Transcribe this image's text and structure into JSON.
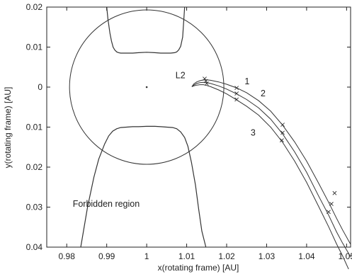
{
  "chart_data": {
    "type": "line",
    "title": "",
    "xlabel": "x(rotating frame) [AU]",
    "ylabel": "y(rotating frame) [AU]",
    "xlim": [
      0.975,
      1.051
    ],
    "ylim": [
      -0.04,
      0.02
    ],
    "y_inverted_display": false,
    "grid": false,
    "x_ticks": [
      0.98,
      0.99,
      1,
      1.01,
      1.02,
      1.03,
      1.04,
      1.05
    ],
    "x_tick_labels": [
      "0.98",
      "0.99",
      "1",
      "1.01",
      "1.02",
      "1.03",
      "1.04",
      "1.05"
    ],
    "y_ticks": [
      0.02,
      0.01,
      0,
      -0.01,
      -0.02,
      -0.03,
      -0.04
    ],
    "y_tick_labels": [
      "0.02",
      "0.01",
      "0",
      "0.01",
      "0.02",
      "0.03",
      "0.04"
    ],
    "circle": {
      "center": [
        1.0,
        0.0
      ],
      "radius": 0.0193
    },
    "center_point": [
      1.0,
      0.0
    ],
    "forbidden_boundary_upper": [
      {
        "x": [
          0.99,
          0.9903,
          0.9908,
          0.9912,
          0.9916,
          0.992,
          0.9925,
          0.993,
          0.9935,
          0.994,
          0.995,
          0.9965,
          0.998,
          1.0,
          1.002,
          1.0035,
          1.005,
          1.006,
          1.007,
          1.0075,
          1.008,
          1.0085,
          1.009,
          1.0095
        ],
        "y": [
          0.02,
          0.017,
          0.0135,
          0.0115,
          0.01,
          0.0093,
          0.0088,
          0.0086,
          0.0085,
          0.0085,
          0.0085,
          0.0085,
          0.0086,
          0.0087,
          0.0086,
          0.0085,
          0.0085,
          0.0085,
          0.0086,
          0.0088,
          0.0093,
          0.0102,
          0.0125,
          0.02
        ]
      }
    ],
    "forbidden_boundary_lower": [
      {
        "x": [
          0.9835,
          0.9852,
          0.9868,
          0.988,
          0.9895,
          0.9905,
          0.9915,
          0.9925,
          0.9935,
          0.995,
          0.9965,
          0.998,
          1.0,
          1.002,
          1.0035,
          1.005,
          1.0065,
          1.0075,
          1.0085,
          1.0095,
          1.0103,
          1.0112,
          1.0122,
          1.013,
          1.0138,
          1.0148
        ],
        "y": [
          -0.04,
          -0.03,
          -0.0225,
          -0.018,
          -0.0142,
          -0.0122,
          -0.011,
          -0.0104,
          -0.0101,
          -0.01,
          -0.0099,
          -0.0099,
          -0.0098,
          -0.0098,
          -0.0099,
          -0.01,
          -0.0101,
          -0.0104,
          -0.0112,
          -0.0126,
          -0.0148,
          -0.0188,
          -0.0245,
          -0.0305,
          -0.036,
          -0.04
        ]
      }
    ],
    "series": [
      {
        "x": [
          1.0113,
          1.0118,
          1.0125,
          1.0133,
          1.0142,
          1.015,
          1.016,
          1.018,
          1.02,
          1.0225,
          1.025,
          1.028,
          1.031,
          1.034,
          1.037,
          1.04,
          1.043,
          1.0455,
          1.0475,
          1.049,
          1.051
        ],
        "y": [
          0.0001,
          0.0008,
          0.0013,
          0.0016,
          0.0018,
          0.0018,
          0.0017,
          0.0013,
          0.0007,
          -0.0002,
          -0.0014,
          -0.0034,
          -0.006,
          -0.0095,
          -0.0137,
          -0.0185,
          -0.024,
          -0.0288,
          -0.0328,
          -0.0357,
          -0.0393
        ]
      },
      {
        "x": [
          1.0113,
          1.0118,
          1.0125,
          1.0133,
          1.0142,
          1.015,
          1.016,
          1.018,
          1.02,
          1.0225,
          1.025,
          1.028,
          1.031,
          1.034,
          1.037,
          1.04,
          1.043,
          1.0455,
          1.0475,
          1.049,
          1.051
        ],
        "y": [
          0.0001,
          0.0005,
          0.0009,
          0.0011,
          0.0012,
          0.0011,
          0.0009,
          0.0003,
          -0.0005,
          -0.0017,
          -0.0031,
          -0.0052,
          -0.008,
          -0.0117,
          -0.0162,
          -0.0213,
          -0.0272,
          -0.032,
          -0.0362,
          -0.039,
          -0.0424
        ]
      },
      {
        "x": [
          1.0113,
          1.0118,
          1.0125,
          1.0133,
          1.0142,
          1.015,
          1.016,
          1.018,
          1.02,
          1.0225,
          1.025,
          1.028,
          1.031,
          1.034,
          1.037,
          1.04,
          1.043,
          1.0455,
          1.0475,
          1.049,
          1.0505
        ],
        "y": [
          0.0001,
          0.0003,
          0.0005,
          0.0006,
          0.0006,
          0.0004,
          0.0001,
          -0.0007,
          -0.0017,
          -0.0032,
          -0.0048,
          -0.007,
          -0.01,
          -0.0138,
          -0.0185,
          -0.0238,
          -0.0298,
          -0.0349,
          -0.0392,
          -0.0422,
          -0.0455
        ]
      }
    ],
    "x_markers": [
      {
        "x": 1.0145,
        "y": 0.0021
      },
      {
        "x": 1.0148,
        "y": 0.0015
      },
      {
        "x": 1.015,
        "y": 0.0009
      },
      {
        "x": 1.0225,
        "y": -0.0002
      },
      {
        "x": 1.0225,
        "y": -0.0016
      },
      {
        "x": 1.0225,
        "y": -0.0031
      },
      {
        "x": 1.034,
        "y": -0.0094
      },
      {
        "x": 1.034,
        "y": -0.0114
      },
      {
        "x": 1.0338,
        "y": -0.0133
      },
      {
        "x": 1.047,
        "y": -0.0265
      },
      {
        "x": 1.0462,
        "y": -0.0292
      },
      {
        "x": 1.0455,
        "y": -0.0312
      }
    ],
    "annotations": [
      {
        "text": "L2",
        "x": 1.0072,
        "y": 0.0029
      },
      {
        "text": "1",
        "x": 1.0245,
        "y": 0.0014
      },
      {
        "text": "2",
        "x": 1.0285,
        "y": -0.0016
      },
      {
        "text": "3",
        "x": 1.026,
        "y": -0.0114
      },
      {
        "text": "Forbidden region",
        "x": 0.9815,
        "y": -0.0292
      }
    ],
    "colors": {
      "curves": "#333333",
      "axes": "#222222",
      "background": "#ffffff"
    }
  }
}
